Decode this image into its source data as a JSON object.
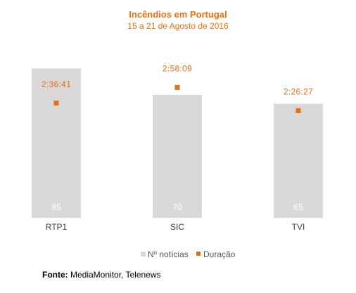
{
  "chart_data": {
    "type": "bar",
    "title": "Incêndios em Portugal",
    "subtitle": "15 a 21 de Agosto de 2016",
    "categories": [
      "RTP1",
      "SIC",
      "TVI"
    ],
    "series": [
      {
        "name": "Nº notícias",
        "kind": "bar",
        "values": [
          85,
          70,
          65
        ],
        "labels": [
          "85",
          "70",
          "65"
        ],
        "color": "#d9d9d9"
      },
      {
        "name": "Duração",
        "kind": "marker",
        "values_seconds": [
          9401,
          10689,
          8787
        ],
        "labels": [
          "2:36:41",
          "2:58:09",
          "2:26:27"
        ],
        "color": "#e8700f"
      }
    ],
    "bar_ylim": [
      0,
      100
    ],
    "duration_ylim_seconds": [
      0,
      14400
    ],
    "legend_position": "bottom",
    "grid": false
  },
  "source": {
    "label": "Fonte:",
    "text": "MediaMonitor, Telenews"
  }
}
